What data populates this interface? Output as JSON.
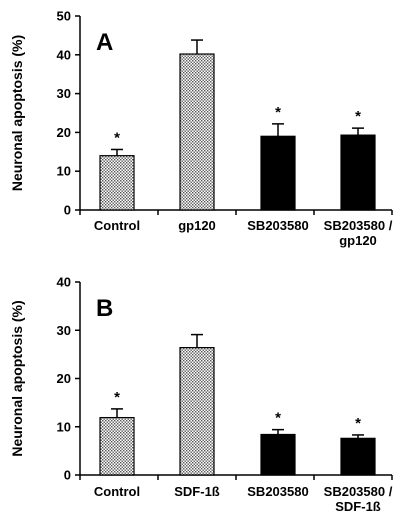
{
  "colors": {
    "stipple_fill": "#c8c8c8",
    "solid_fill": "#000000",
    "axis": "#000000"
  },
  "chart_data": [
    {
      "type": "bar",
      "panel_label": "A",
      "ylabel": "Neuronal apoptosis (%)",
      "ylim": [
        0,
        50
      ],
      "yticks": [
        "0",
        "10",
        "20",
        "30",
        "40",
        "50"
      ],
      "categories": [
        [
          "Control"
        ],
        [
          "gp120"
        ],
        [
          "SB203580"
        ],
        [
          "SB203580 /",
          "gp120"
        ]
      ],
      "values": [
        14,
        40.2,
        19,
        19.3
      ],
      "errors": [
        1.6,
        3.6,
        3.2,
        1.8
      ],
      "fill_pattern": [
        "stipple",
        "stipple",
        "solid",
        "solid"
      ],
      "significance": [
        "*",
        "",
        "*",
        "*"
      ]
    },
    {
      "type": "bar",
      "panel_label": "B",
      "ylabel": "Neuronal apoptosis (%)",
      "ylim": [
        0,
        40
      ],
      "yticks": [
        "0",
        "10",
        "20",
        "30",
        "40"
      ],
      "categories": [
        [
          "Control"
        ],
        [
          "SDF-1ß"
        ],
        [
          "SB203580"
        ],
        [
          "SB203580 /",
          "SDF-1ß"
        ]
      ],
      "values": [
        11.9,
        26.4,
        8.4,
        7.6
      ],
      "errors": [
        1.8,
        2.7,
        1.0,
        0.7
      ],
      "fill_pattern": [
        "stipple",
        "stipple",
        "solid",
        "solid"
      ],
      "significance": [
        "*",
        "",
        "*",
        "*"
      ]
    }
  ]
}
